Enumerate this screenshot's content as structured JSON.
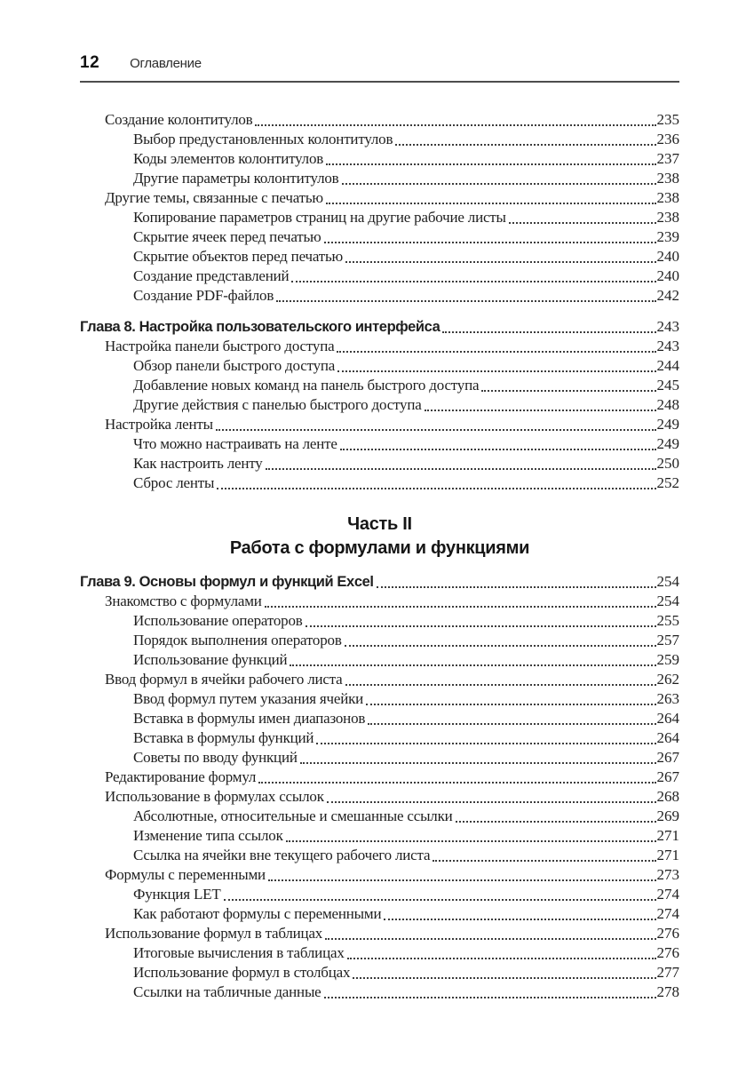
{
  "page_header": {
    "page_number": "12",
    "running_title": "Оглавление"
  },
  "colors": {
    "text": "#1f1f1f",
    "header_rule": "#4d4d4d",
    "dot_leader": "#3c3c3c",
    "background": "#ffffff"
  },
  "toc": {
    "sections": [
      {
        "type": "entries",
        "items": [
          {
            "level": 1,
            "title": "Создание колонтитулов",
            "page": "235"
          },
          {
            "level": 2,
            "title": "Выбор предустановленных колонтитулов",
            "page": "236"
          },
          {
            "level": 2,
            "title": "Коды элементов колонтитулов",
            "page": "237"
          },
          {
            "level": 2,
            "title": "Другие параметры колонтитулов",
            "page": "238"
          },
          {
            "level": 1,
            "title": "Другие темы, связанные с печатью",
            "page": "238"
          },
          {
            "level": 2,
            "title": "Копирование параметров страниц на другие рабочие листы",
            "page": "238"
          },
          {
            "level": 2,
            "title": "Скрытие ячеек перед печатью",
            "page": "239"
          },
          {
            "level": 2,
            "title": "Скрытие объектов перед печатью",
            "page": "240"
          },
          {
            "level": 2,
            "title": "Создание представлений",
            "page": "240"
          },
          {
            "level": 2,
            "title": "Создание PDF-файлов",
            "page": "242"
          }
        ]
      },
      {
        "type": "chapter",
        "title": "Глава 8. Настройка пользовательского интерфейса",
        "page": "243",
        "items": [
          {
            "level": 1,
            "title": "Настройка панели быстрого доступа",
            "page": "243"
          },
          {
            "level": 2,
            "title": "Обзор панели быстрого доступа",
            "page": "244"
          },
          {
            "level": 2,
            "title": "Добавление новых команд на панель быстрого доступа",
            "page": "245"
          },
          {
            "level": 2,
            "title": "Другие действия с панелью быстрого доступа",
            "page": "248"
          },
          {
            "level": 1,
            "title": "Настройка ленты",
            "page": "249"
          },
          {
            "level": 2,
            "title": "Что можно настраивать на ленте",
            "page": "249"
          },
          {
            "level": 2,
            "title": "Как настроить ленту",
            "page": "250"
          },
          {
            "level": 2,
            "title": "Сброс ленты",
            "page": "252"
          }
        ]
      },
      {
        "type": "part",
        "title": "Часть II",
        "subtitle": "Работа с формулами и функциями"
      },
      {
        "type": "chapter",
        "title": "Глава 9. Основы формул и функций Excel",
        "page": "254",
        "items": [
          {
            "level": 1,
            "title": "Знакомство с формулами",
            "page": "254"
          },
          {
            "level": 2,
            "title": "Использование операторов",
            "page": "255"
          },
          {
            "level": 2,
            "title": "Порядок выполнения операторов",
            "page": "257"
          },
          {
            "level": 2,
            "title": "Использование функций",
            "page": "259"
          },
          {
            "level": 1,
            "title": "Ввод формул в ячейки рабочего листа",
            "page": "262"
          },
          {
            "level": 2,
            "title": "Ввод формул путем указания ячейки",
            "page": "263"
          },
          {
            "level": 2,
            "title": "Вставка в формулы имен диапазонов",
            "page": "264"
          },
          {
            "level": 2,
            "title": "Вставка в формулы функций",
            "page": "264"
          },
          {
            "level": 2,
            "title": "Советы по вводу функций",
            "page": "267"
          },
          {
            "level": 1,
            "title": "Редактирование формул",
            "page": "267"
          },
          {
            "level": 1,
            "title": "Использование в формулах ссылок",
            "page": "268"
          },
          {
            "level": 2,
            "title": "Абсолютные, относительные и смешанные ссылки",
            "page": "269"
          },
          {
            "level": 2,
            "title": "Изменение типа ссылок",
            "page": "271"
          },
          {
            "level": 2,
            "title": "Ссылка на ячейки вне текущего рабочего листа",
            "page": "271"
          },
          {
            "level": 1,
            "title": "Формулы с переменными",
            "page": "273"
          },
          {
            "level": 2,
            "title": "Функция LET",
            "page": "274"
          },
          {
            "level": 2,
            "title": "Как работают формулы с переменными",
            "page": "274"
          },
          {
            "level": 1,
            "title": "Использование формул в таблицах",
            "page": "276"
          },
          {
            "level": 2,
            "title": "Итоговые вычисления в таблицах",
            "page": "276"
          },
          {
            "level": 2,
            "title": "Использование формул в столбцах",
            "page": "277"
          },
          {
            "level": 2,
            "title": "Ссылки на табличные данные",
            "page": "278"
          }
        ]
      }
    ]
  }
}
